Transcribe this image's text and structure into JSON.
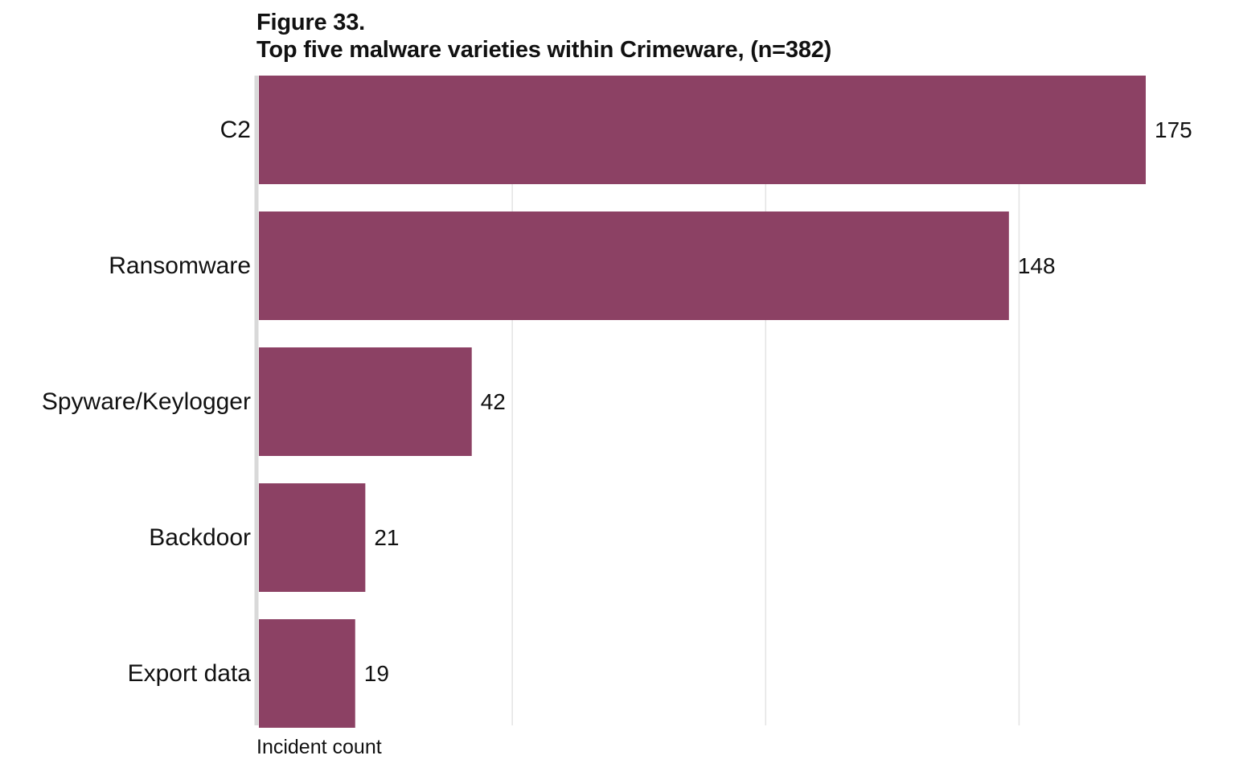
{
  "chart_data": {
    "type": "bar",
    "orientation": "horizontal",
    "title_line1": "Figure 33.",
    "title_line2": "Top five malware varieties within Crimeware, (n=382)",
    "xlabel": "Incident count",
    "ylabel": "",
    "categories": [
      "C2",
      "Ransomware",
      "Spyware/Keylogger",
      "Backdoor",
      "Export data"
    ],
    "values": [
      175,
      148,
      42,
      21,
      19
    ],
    "value_labels": [
      "175",
      "148",
      "42",
      "21",
      "19"
    ],
    "xlim": [
      0,
      175
    ],
    "x_gridlines": [
      50,
      100,
      150
    ],
    "grid": true,
    "x_tick_labels_shown": false,
    "legend": "none",
    "bar_color": "#8c4164",
    "grid_color": "#e3e3e3",
    "axis_color": "#d9d9d9"
  }
}
